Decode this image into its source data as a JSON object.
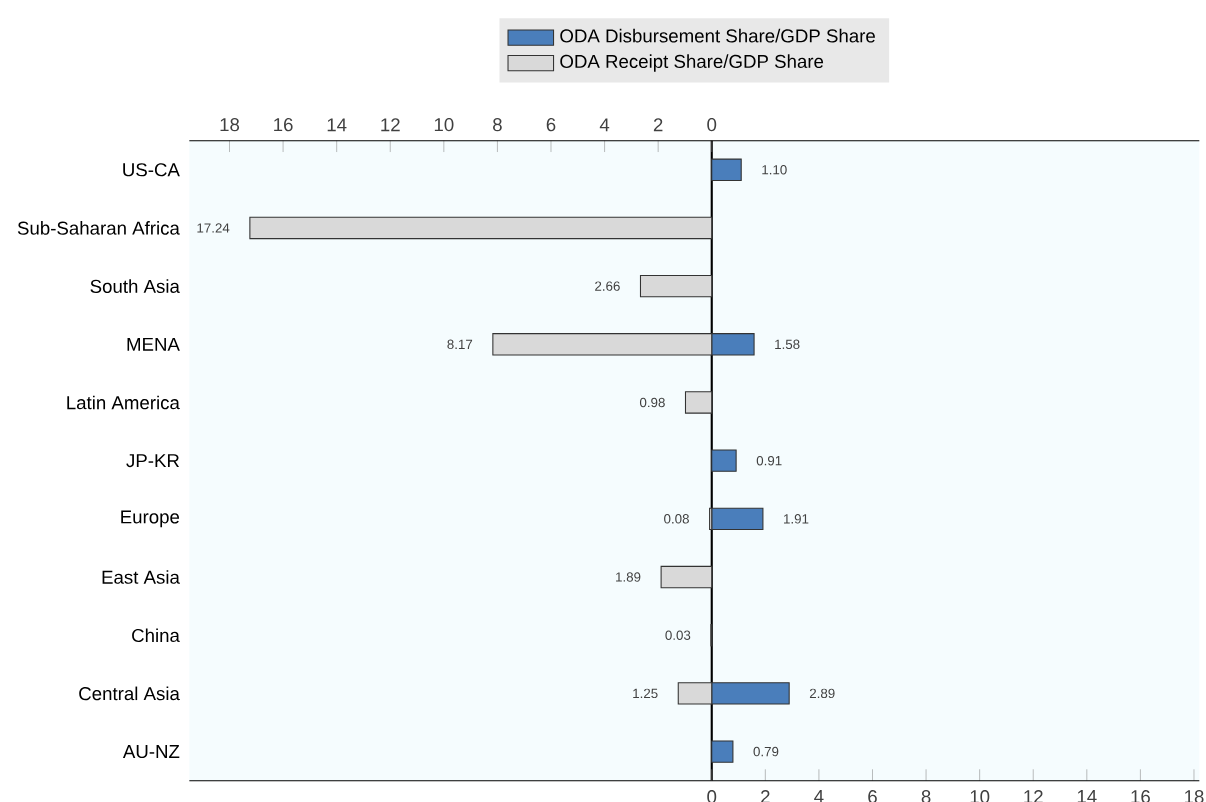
{
  "chart_data": {
    "type": "bar",
    "orientation": "horizontal",
    "legend": "top",
    "categories": [
      "US-CA",
      "Sub-Saharan Africa",
      "South Asia",
      "MENA",
      "Latin America",
      "JP-KR",
      "Europe",
      "East Asia",
      "China",
      "Central Asia",
      "AU-NZ"
    ],
    "series": [
      {
        "name": "ODA Disbursement Share/GDP Share",
        "color": "#4a7ebb",
        "values": [
          1.1,
          null,
          null,
          1.58,
          null,
          0.91,
          1.91,
          null,
          null,
          2.89,
          0.79
        ],
        "value_labels": [
          "1.10",
          null,
          null,
          "1.58",
          null,
          "0.91",
          "1.91",
          null,
          null,
          "2.89",
          "0.79"
        ]
      },
      {
        "name": "ODA Receipt Share/GDP Share",
        "color": "#d9d9d9",
        "axis": "x2",
        "values": [
          null,
          17.24,
          2.66,
          8.17,
          0.98,
          null,
          0.08,
          1.89,
          0.03,
          1.25,
          null
        ],
        "value_labels": [
          null,
          "17.24",
          "2.66",
          "8.17",
          "0.98",
          null,
          "0.08",
          "1.89",
          "0.03",
          "1.25",
          null
        ]
      }
    ],
    "xlim": [
      -19.5,
      18.2
    ],
    "xticks": [
      0,
      2,
      4,
      6,
      8,
      10,
      12,
      14,
      16,
      18
    ],
    "x2lim": [
      19.5,
      -18.2
    ],
    "x2ticks": [
      18,
      16,
      14,
      12,
      10,
      8,
      6,
      4,
      2,
      0
    ]
  }
}
